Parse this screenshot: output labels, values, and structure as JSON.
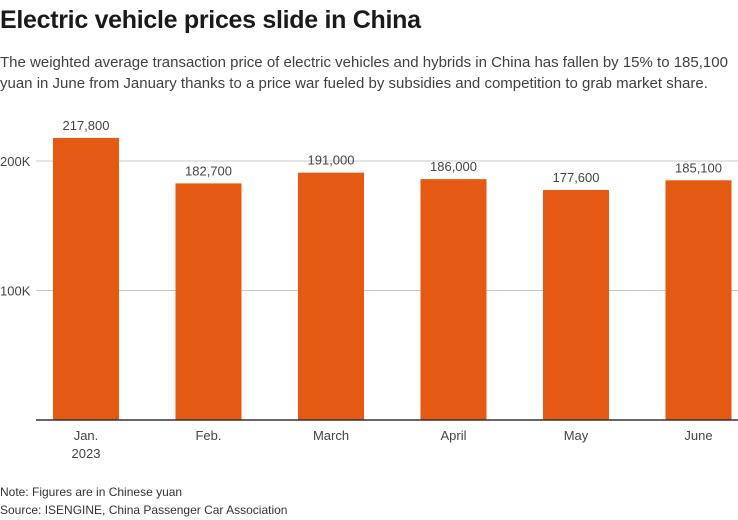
{
  "header": {
    "title": "Electric vehicle prices slide in China",
    "subtitle": "The weighted average transaction price of electric vehicles and hybrids in China has fallen by 15% to 185,100 yuan in June from January thanks to a price war fueled by subsidies and competition to grab market share."
  },
  "footer": {
    "note": "Note: Figures are in Chinese yuan",
    "source": "Source: ISENGINE, China Passenger Car Association"
  },
  "colors": {
    "bar": "#e55a12",
    "grid": "#c8c8c8",
    "axis": "#333333",
    "label": "#444444"
  },
  "chart_data": {
    "type": "bar",
    "title": "Electric vehicle prices slide in China",
    "xlabel": "",
    "ylabel": "",
    "categories": [
      "Jan.|2023",
      "Feb.",
      "March",
      "April",
      "May",
      "June"
    ],
    "values": [
      217800,
      182700,
      191000,
      186000,
      177600,
      185100
    ],
    "value_labels": [
      "217,800",
      "182,700",
      "191,000",
      "186,000",
      "177,600",
      "185,100"
    ],
    "ylim": [
      0,
      220000
    ],
    "yticks": [
      100000,
      200000
    ],
    "ytick_labels": [
      "100K",
      "200K"
    ],
    "grid": true,
    "legend": "none"
  }
}
